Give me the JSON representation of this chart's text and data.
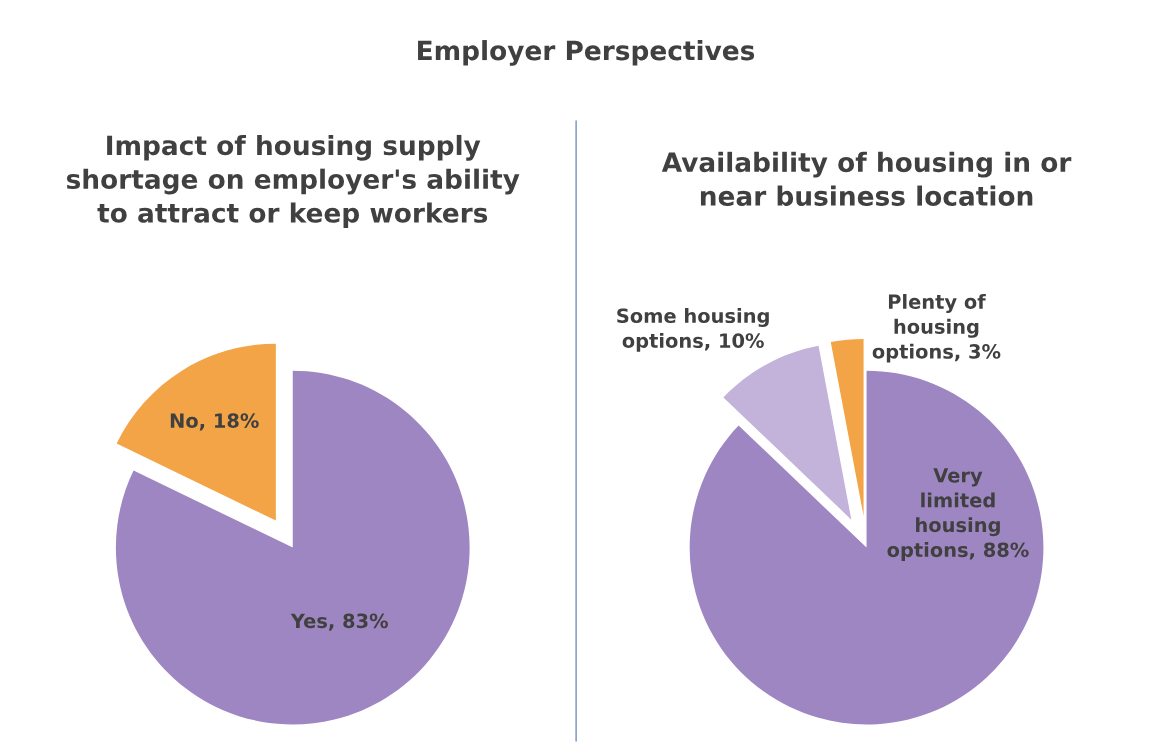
{
  "chart_data": [
    {
      "type": "pie",
      "title": "Impact of housing supply shortage on employer's ability to attract or keep workers",
      "annotations": [
        "Employer Perspectives"
      ],
      "categories": [
        "Yes",
        "No"
      ],
      "values": [
        83,
        18
      ],
      "value_labels": [
        "83%",
        "18%"
      ],
      "colors": [
        "#9e86c2",
        "#f2a446"
      ]
    },
    {
      "type": "pie",
      "title": "Availability of housing in or near business location",
      "categories": [
        "Very limited housing options",
        "Some housing options",
        "Plenty of housing options"
      ],
      "values": [
        88,
        10,
        3
      ],
      "value_labels": [
        "88%",
        "10%",
        "3%"
      ],
      "colors": [
        "#9e86c2",
        "#c3b3da",
        "#f2a446"
      ]
    }
  ]
}
